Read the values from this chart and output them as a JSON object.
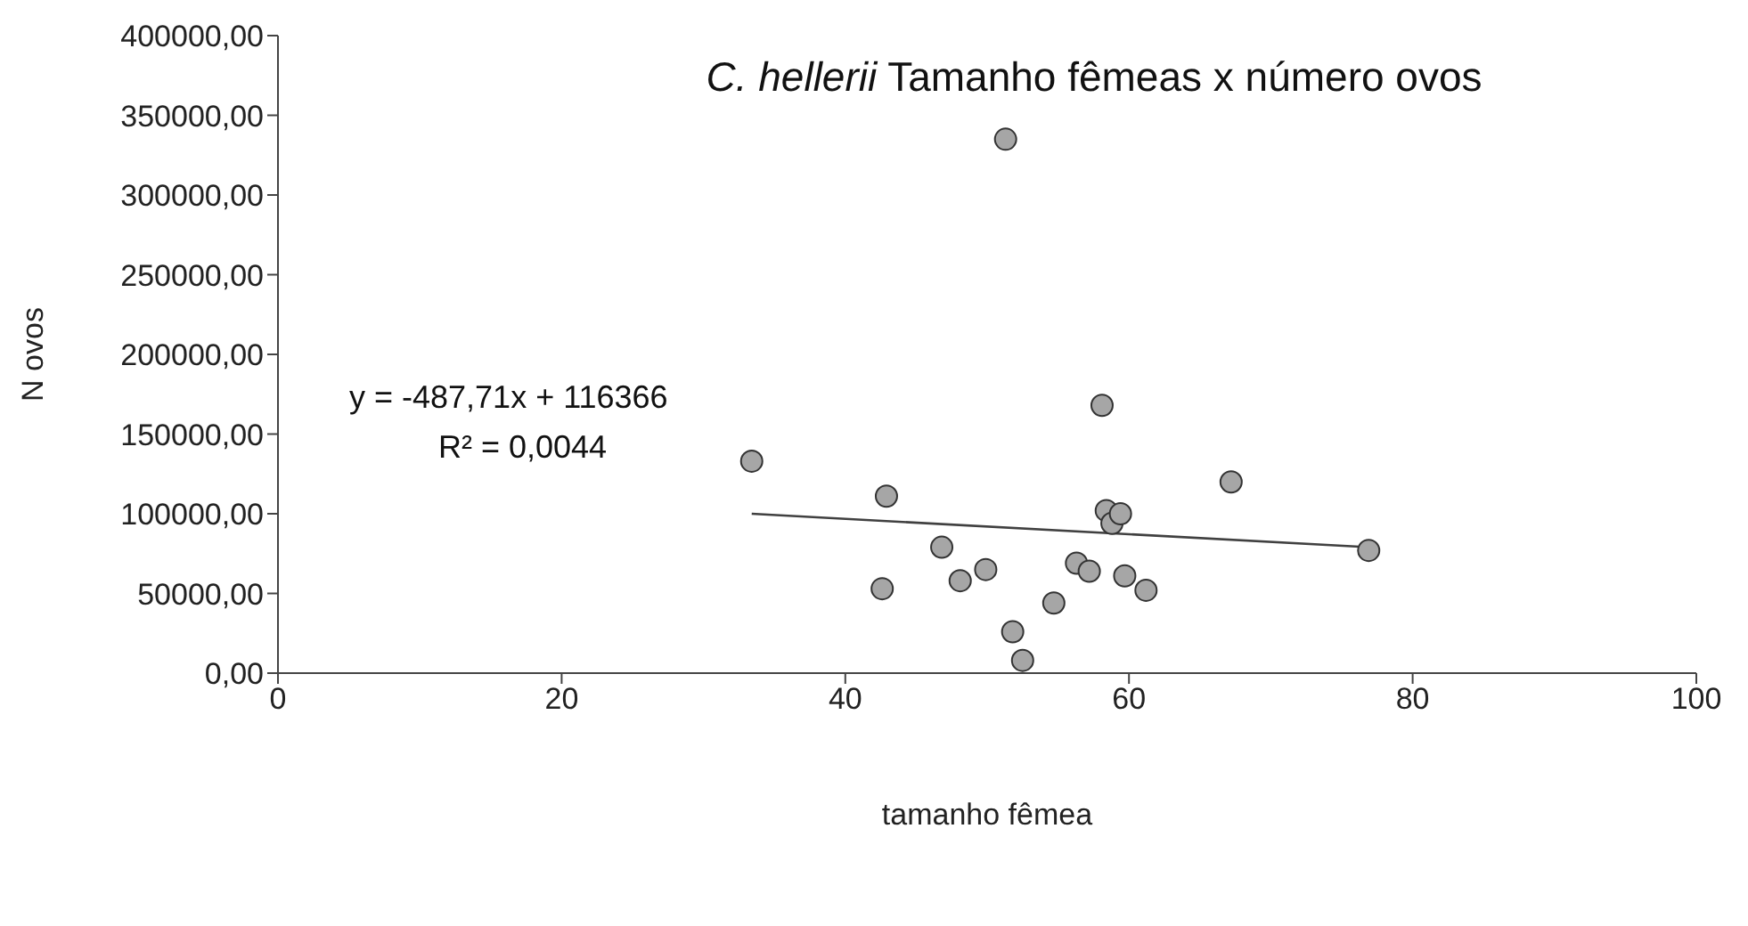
{
  "chart_data": {
    "type": "scatter",
    "title": "C. hellerii Tamanho fêmeas x número ovos",
    "xlabel": "tamanho fêmea",
    "ylabel": "N ovos",
    "annotations": [
      "y = -487,71x + 116366",
      "R² = 0,0044"
    ],
    "xlim": [
      0,
      100
    ],
    "xticks": [
      0,
      20,
      40,
      60,
      80,
      100
    ],
    "ylim": [
      0,
      400000
    ],
    "yticks": [
      {
        "value": 0,
        "label": "0,00"
      },
      {
        "value": 50000,
        "label": "50000,00"
      },
      {
        "value": 100000,
        "label": "100000,00"
      },
      {
        "value": 150000,
        "label": "150000,00"
      },
      {
        "value": 200000,
        "label": "200000,00"
      },
      {
        "value": 250000,
        "label": "250000,00"
      },
      {
        "value": 300000,
        "label": "300000,00"
      },
      {
        "value": 350000,
        "label": "350000,00"
      },
      {
        "value": 400000,
        "label": "400000,00"
      }
    ],
    "grid": false,
    "legend": false,
    "marker": "circle",
    "series": [
      {
        "color": "#a6a6a6",
        "x": [
          33.4,
          42.9,
          42.6,
          46.8,
          48.1,
          49.9,
          51.3,
          51.8,
          52.5,
          54.7,
          56.3,
          57.2,
          58.1,
          58.4,
          58.8,
          59.4,
          59.7,
          61.2,
          67.2,
          76.9
        ],
        "values": [
          133000,
          111000,
          53000,
          79000,
          58000,
          65000,
          335000,
          26000,
          8000,
          44000,
          69000,
          64000,
          168000,
          102000,
          94000,
          100000,
          61000,
          52000,
          120000,
          77000
        ]
      },
      {
        "type": "line",
        "color": "#404040",
        "marker": "none",
        "line_style": "solid",
        "x": [
          33.4,
          76.9
        ],
        "values": [
          100000,
          79000
        ]
      }
    ]
  }
}
